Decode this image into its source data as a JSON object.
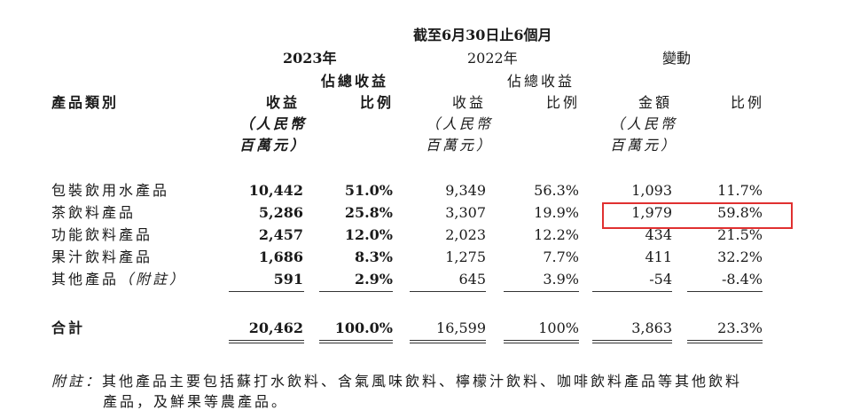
{
  "header": {
    "period": "截至6月30日止6個月",
    "year_2023": "2023年",
    "year_2022": "2022年",
    "change": "變動",
    "pct_total_a": "佔總收益",
    "pct_total_b": "佔總收益",
    "category": "產品類別",
    "revenue_a": "收益",
    "ratio_a": "比例",
    "revenue_b": "收益",
    "ratio_b": "比例",
    "amount": "金額",
    "ratio_c": "比例",
    "unit_line1": "（人民幣",
    "unit_line2": "百萬元）"
  },
  "rows": [
    {
      "name": "包裝飲用水產品",
      "rev2023": "10,442",
      "pct2023": "51.0%",
      "rev2022": "9,349",
      "pct2022": "56.3%",
      "chg_amt": "1,093",
      "chg_pct": "11.7%"
    },
    {
      "name": "茶飲料產品",
      "rev2023": "5,286",
      "pct2023": "25.8%",
      "rev2022": "3,307",
      "pct2022": "19.9%",
      "chg_amt": "1,979",
      "chg_pct": "59.8%"
    },
    {
      "name": "功能飲料產品",
      "rev2023": "2,457",
      "pct2023": "12.0%",
      "rev2022": "2,023",
      "pct2022": "12.2%",
      "chg_amt": "434",
      "chg_pct": "21.5%"
    },
    {
      "name": "果汁飲料產品",
      "rev2023": "1,686",
      "pct2023": "8.3%",
      "rev2022": "1,275",
      "pct2022": "7.7%",
      "chg_amt": "411",
      "chg_pct": "32.2%"
    },
    {
      "name_main": "其他產品",
      "name_note": "（附註）",
      "rev2023": "591",
      "pct2023": "2.9%",
      "rev2022": "645",
      "pct2022": "3.9%",
      "chg_amt": "-54",
      "chg_pct": "-8.4%"
    }
  ],
  "total": {
    "name": "合計",
    "rev2023": "20,462",
    "pct2023": "100.0%",
    "rev2022": "16,599",
    "pct2022": "100%",
    "chg_amt": "3,863",
    "chg_pct": "23.3%"
  },
  "note": {
    "label": "附註：",
    "line1": "其他產品主要包括蘇打水飲料、含氣風味飲料、檸檬汁飲料、咖啡飲料產品等其他飲料",
    "line2": "產品，及鮮果等農產品。"
  },
  "highlight_color": "#e03030"
}
